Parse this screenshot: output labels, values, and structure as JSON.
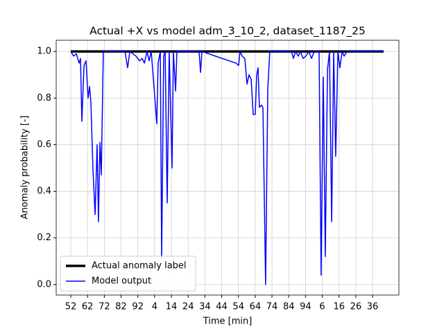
{
  "chart_data": {
    "type": "line",
    "title": "Actual +X vs model adm_3_10_2, dataset_1187_25",
    "xlabel": "Time [min]",
    "ylabel": "Anomaly probability [-]",
    "xlim": [
      43.3,
      247.7
    ],
    "ylim": [
      -0.045,
      1.048
    ],
    "xticks": [
      {
        "value": 52,
        "label": "52"
      },
      {
        "value": 62,
        "label": "62"
      },
      {
        "value": 72,
        "label": "72"
      },
      {
        "value": 82,
        "label": "82"
      },
      {
        "value": 92,
        "label": "92"
      },
      {
        "value": 102,
        "label": "4"
      },
      {
        "value": 112,
        "label": "14"
      },
      {
        "value": 122,
        "label": "24"
      },
      {
        "value": 132,
        "label": "34"
      },
      {
        "value": 142,
        "label": "44"
      },
      {
        "value": 152,
        "label": "54"
      },
      {
        "value": 162,
        "label": "64"
      },
      {
        "value": 172,
        "label": "74"
      },
      {
        "value": 182,
        "label": "84"
      },
      {
        "value": 192,
        "label": "94"
      },
      {
        "value": 202,
        "label": "6"
      },
      {
        "value": 212,
        "label": "16"
      },
      {
        "value": 222,
        "label": "26"
      },
      {
        "value": 232,
        "label": "36"
      }
    ],
    "yticks": [
      {
        "value": 0,
        "label": "0.0"
      },
      {
        "value": 0.2,
        "label": "0.2"
      },
      {
        "value": 0.4,
        "label": "0.4"
      },
      {
        "value": 0.6,
        "label": "0.6"
      },
      {
        "value": 0.8,
        "label": "0.8"
      },
      {
        "value": 1,
        "label": "1.0"
      }
    ],
    "grid": true,
    "legend": "lower left",
    "series": [
      {
        "name": "Actual anomaly label",
        "color": "#000000",
        "width": 3.5,
        "x": [
          52,
          238.6
        ],
        "values": [
          1,
          1
        ]
      },
      {
        "name": "Model output",
        "color": "#0000ff",
        "width": 1.5,
        "x": [
          52,
          53.7,
          55.3,
          57,
          57.8,
          58.6,
          59.9,
          61.1,
          62.3,
          63.2,
          64,
          65.2,
          66.5,
          67.7,
          68.5,
          69.4,
          70.2,
          71.4,
          84.3,
          85.9,
          87.2,
          90.9,
          93,
          94.6,
          95.9,
          97.5,
          98.7,
          100,
          103.3,
          104.1,
          105.4,
          106.2,
          107.4,
          108.3,
          109.5,
          110.7,
          112.4,
          113.2,
          114.5,
          115.3,
          128.5,
          129.4,
          130.2,
          150.5,
          152.1,
          152.9,
          154.2,
          155.8,
          157.1,
          158.3,
          159.6,
          160.8,
          162,
          162.9,
          163.7,
          164.5,
          165.8,
          166.6,
          168.2,
          169.5,
          170.7,
          183.6,
          184.8,
          186,
          187.7,
          188.9,
          190.6,
          192.2,
          193.9,
          195.6,
          197.2,
          200.1,
          201.3,
          202.6,
          203.8,
          205.1,
          206.3,
          207.6,
          208.8,
          210,
          211.3,
          212.5,
          213.8,
          215,
          216.7,
          238.6
        ],
        "values": [
          1,
          0.98,
          0.99,
          0.95,
          0.97,
          0.7,
          0.94,
          0.96,
          0.8,
          0.85,
          0.78,
          0.5,
          0.3,
          0.6,
          0.27,
          0.61,
          0.47,
          1,
          1,
          0.93,
          1,
          0.98,
          0.96,
          0.97,
          0.95,
          1,
          0.96,
          1,
          0.69,
          0.95,
          1,
          0.11,
          0.98,
          1,
          0.35,
          1,
          0.5,
          1,
          0.83,
          1,
          1,
          0.91,
          1,
          0.95,
          0.94,
          1,
          0.98,
          0.97,
          0.86,
          0.9,
          0.88,
          0.73,
          0.73,
          0.9,
          0.93,
          0.76,
          0.77,
          0.76,
          0,
          0.84,
          1,
          1,
          0.97,
          1,
          0.98,
          1,
          0.97,
          0.98,
          1,
          0.97,
          1,
          1,
          0.04,
          0.89,
          0.12,
          0.92,
          1,
          0.27,
          1,
          0.55,
          1,
          0.93,
          1,
          0.98,
          1,
          1
        ]
      }
    ]
  }
}
